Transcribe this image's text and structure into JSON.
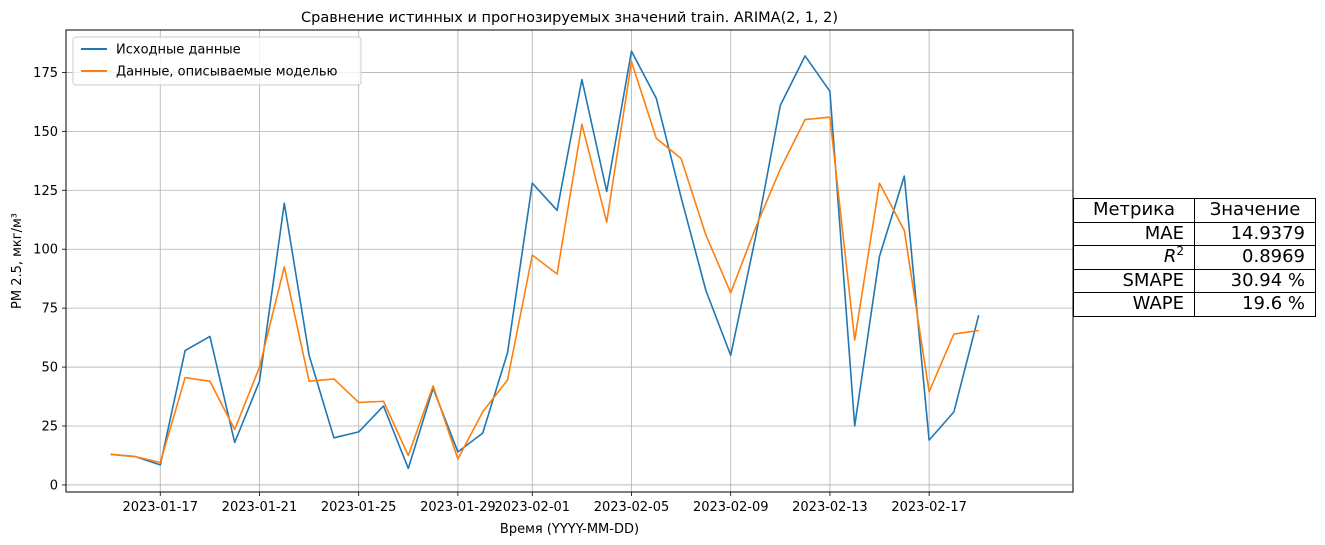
{
  "chart_data": {
    "type": "line",
    "title": "Сравнение истинных и прогнозируемых значений train. ARIMA(2, 1, 2)",
    "xlabel": "Время (YYYY-MM-DD)",
    "ylabel": "PM 2.5, мкг/м³",
    "ylim": [
      -3,
      193
    ],
    "xlim_days": [
      -1.8,
      38.8
    ],
    "start_date": "2023-01-15",
    "x_ticks": [
      {
        "day": 2,
        "label": "2023-01-17"
      },
      {
        "day": 6,
        "label": "2023-01-21"
      },
      {
        "day": 10,
        "label": "2023-01-25"
      },
      {
        "day": 14,
        "label": "2023-01-29"
      },
      {
        "day": 17,
        "label": "2023-02-01"
      },
      {
        "day": 21,
        "label": "2023-02-05"
      },
      {
        "day": 25,
        "label": "2023-02-09"
      },
      {
        "day": 29,
        "label": "2023-02-13"
      },
      {
        "day": 33,
        "label": "2023-02-17"
      }
    ],
    "y_ticks": [
      0,
      25,
      50,
      75,
      100,
      125,
      150,
      175
    ],
    "grid": true,
    "legend_position": "upper-left",
    "x_days": [
      0,
      1,
      2,
      3,
      4,
      5,
      6,
      7,
      8,
      9,
      10,
      11,
      12,
      13,
      14,
      15,
      16,
      17,
      18,
      19,
      20,
      21,
      22,
      23,
      24,
      25,
      26,
      27,
      28,
      29,
      30,
      31,
      32,
      33,
      34,
      35
    ],
    "series": [
      {
        "name": "Исходные данные",
        "color": "#1f77b4",
        "values": [
          13,
          12,
          8.5,
          57,
          63,
          18,
          44,
          119.5,
          55,
          20,
          22.5,
          33.5,
          7,
          41,
          14,
          22,
          56,
          128,
          116.5,
          172,
          124.5,
          184,
          164,
          122,
          82.5,
          55,
          105,
          161,
          182,
          167,
          25,
          97,
          131,
          19,
          31,
          72
        ]
      },
      {
        "name": "Данные, описываемые моделью",
        "color": "#ff7f0e",
        "values": [
          13,
          12,
          9.5,
          45.5,
          44,
          23.5,
          50,
          92.5,
          44,
          45,
          35,
          35.5,
          12.5,
          42,
          11,
          31,
          44.5,
          97.5,
          89.5,
          153,
          111.5,
          179.5,
          147,
          138.5,
          106,
          81.5,
          109,
          134,
          155,
          156,
          61.5,
          128,
          108,
          39.5,
          64,
          65.5
        ]
      }
    ]
  },
  "metrics_table": {
    "header_metric": "Метрика",
    "header_value": "Значение",
    "rows": [
      {
        "metric": "MAE",
        "value": "14.9379"
      },
      {
        "metric": "R",
        "sup": "2",
        "value": "0.8969"
      },
      {
        "metric": "SMAPE",
        "value": "30.94 %"
      },
      {
        "metric": "WAPE",
        "value": "19.6 %"
      }
    ]
  }
}
